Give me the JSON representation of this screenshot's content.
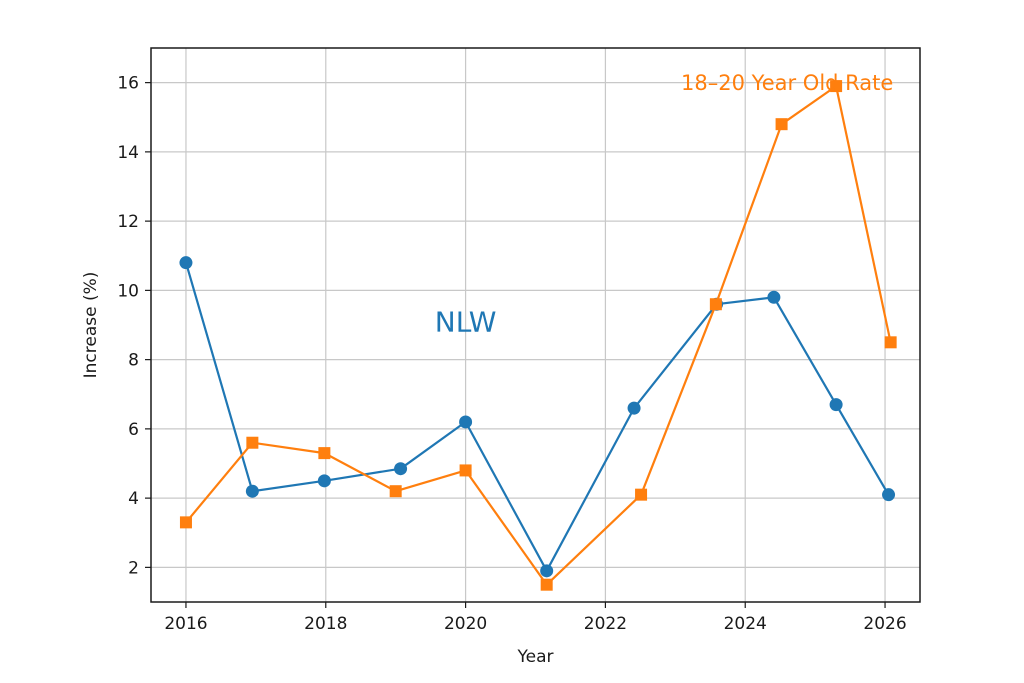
{
  "chart_data": {
    "type": "line",
    "title": "",
    "xlabel": "Year",
    "ylabel": "Increase (%)",
    "xlim": [
      2015.5,
      2026.5
    ],
    "ylim": [
      1.0,
      17.0
    ],
    "xticks": [
      2016,
      2018,
      2020,
      2022,
      2024,
      2026
    ],
    "yticks": [
      2,
      4,
      6,
      8,
      10,
      12,
      14,
      16
    ],
    "grid": true,
    "series": [
      {
        "name": "NLW",
        "color": "#1f77b4",
        "marker": "circle",
        "x": [
          2016,
          2016.95,
          2017.98,
          2019.07,
          2020.0,
          2021.16,
          2022.41,
          2023.59,
          2024.41,
          2025.3,
          2026.05
        ],
        "y": [
          10.8,
          4.2,
          4.5,
          4.85,
          6.2,
          1.9,
          6.6,
          9.6,
          9.8,
          6.7,
          4.1
        ]
      },
      {
        "name": "18–20 Year Old Rate",
        "color": "#ff7f0e",
        "marker": "square",
        "x": [
          2016,
          2016.95,
          2017.98,
          2019.0,
          2020.0,
          2021.16,
          2022.51,
          2023.58,
          2024.52,
          2025.3,
          2026.08
        ],
        "y": [
          3.3,
          5.6,
          5.3,
          4.2,
          4.8,
          1.5,
          4.1,
          9.6,
          14.8,
          15.9,
          8.5
        ]
      }
    ],
    "annotations": [
      {
        "text": "NLW",
        "series": 0,
        "x": 2020.0,
        "y": 9.1
      },
      {
        "text": "18–20 Year Old Rate",
        "series": 1,
        "x": 2024.6,
        "y": 16.0
      }
    ]
  }
}
